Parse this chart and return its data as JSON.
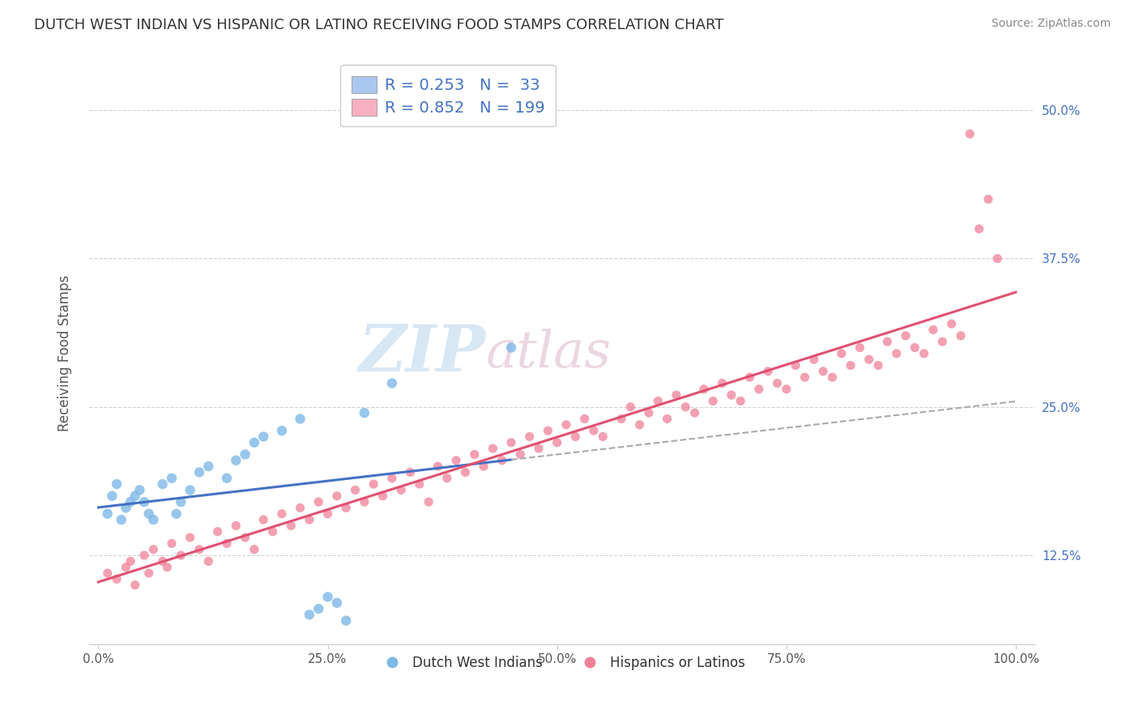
{
  "title": "DUTCH WEST INDIAN VS HISPANIC OR LATINO RECEIVING FOOD STAMPS CORRELATION CHART",
  "source": "Source: ZipAtlas.com",
  "ylabel": "Receiving Food Stamps",
  "watermark_zip": "ZIP",
  "watermark_atlas": "atlas",
  "xlim": [
    -1.0,
    102.0
  ],
  "ylim": [
    5.0,
    54.0
  ],
  "yticks": [
    12.5,
    25.0,
    37.5,
    50.0
  ],
  "ytick_labels": [
    "12.5%",
    "25.0%",
    "37.5%",
    "50.0%"
  ],
  "xticks": [
    0.0,
    25.0,
    50.0,
    75.0,
    100.0
  ],
  "xtick_labels": [
    "0.0%",
    "25.0%",
    "50.0%",
    "75.0%",
    "100.0%"
  ],
  "blue_R": 0.253,
  "blue_N": 33,
  "pink_R": 0.852,
  "pink_N": 199,
  "blue_patch_color": "#A8C8F0",
  "pink_patch_color": "#F8B0C0",
  "blue_line_color": "#4472C4",
  "pink_line_color": "#E05070",
  "blue_scatter_color": "#7EB8E8",
  "pink_scatter_color": "#F08098",
  "legend_label_blue": "Dutch West Indians",
  "legend_label_pink": "Hispanics or Latinos",
  "title_color": "#333333",
  "ytick_color": "#4472C4",
  "xtick_color": "#555555",
  "grid_color": "#CCCCCC",
  "background_color": "#FFFFFF",
  "blue_x": [
    1.0,
    1.5,
    2.0,
    2.5,
    3.0,
    3.5,
    4.0,
    4.5,
    5.0,
    5.5,
    6.0,
    7.0,
    8.0,
    8.5,
    9.0,
    10.0,
    11.0,
    12.0,
    14.0,
    15.0,
    16.0,
    17.0,
    18.0,
    20.0,
    22.0,
    23.0,
    24.0,
    25.0,
    26.0,
    27.0,
    29.0,
    32.0,
    45.0
  ],
  "blue_y": [
    16.0,
    17.5,
    18.5,
    15.5,
    16.5,
    17.0,
    17.5,
    18.0,
    17.0,
    16.0,
    15.5,
    18.5,
    19.0,
    16.0,
    17.0,
    18.0,
    19.5,
    20.0,
    19.0,
    20.5,
    21.0,
    22.0,
    22.5,
    23.0,
    24.0,
    7.5,
    8.0,
    9.0,
    8.5,
    7.0,
    24.5,
    27.0,
    30.0
  ],
  "pink_x": [
    1.0,
    2.0,
    3.0,
    3.5,
    4.0,
    5.0,
    5.5,
    6.0,
    7.0,
    7.5,
    8.0,
    9.0,
    10.0,
    11.0,
    12.0,
    13.0,
    14.0,
    15.0,
    16.0,
    17.0,
    18.0,
    19.0,
    20.0,
    21.0,
    22.0,
    23.0,
    24.0,
    25.0,
    26.0,
    27.0,
    28.0,
    29.0,
    30.0,
    31.0,
    32.0,
    33.0,
    34.0,
    35.0,
    36.0,
    37.0,
    38.0,
    39.0,
    40.0,
    41.0,
    42.0,
    43.0,
    44.0,
    45.0,
    46.0,
    47.0,
    48.0,
    49.0,
    50.0,
    51.0,
    52.0,
    53.0,
    54.0,
    55.0,
    57.0,
    58.0,
    59.0,
    60.0,
    61.0,
    62.0,
    63.0,
    64.0,
    65.0,
    66.0,
    67.0,
    68.0,
    69.0,
    70.0,
    71.0,
    72.0,
    73.0,
    74.0,
    75.0,
    76.0,
    77.0,
    78.0,
    79.0,
    80.0,
    81.0,
    82.0,
    83.0,
    84.0,
    85.0,
    86.0,
    87.0,
    88.0,
    89.0,
    90.0,
    91.0,
    92.0,
    93.0,
    94.0,
    95.0,
    96.0,
    97.0,
    98.0
  ],
  "pink_y": [
    11.0,
    10.5,
    11.5,
    12.0,
    10.0,
    12.5,
    11.0,
    13.0,
    12.0,
    11.5,
    13.5,
    12.5,
    14.0,
    13.0,
    12.0,
    14.5,
    13.5,
    15.0,
    14.0,
    13.0,
    15.5,
    14.5,
    16.0,
    15.0,
    16.5,
    15.5,
    17.0,
    16.0,
    17.5,
    16.5,
    18.0,
    17.0,
    18.5,
    17.5,
    19.0,
    18.0,
    19.5,
    18.5,
    17.0,
    20.0,
    19.0,
    20.5,
    19.5,
    21.0,
    20.0,
    21.5,
    20.5,
    22.0,
    21.0,
    22.5,
    21.5,
    23.0,
    22.0,
    23.5,
    22.5,
    24.0,
    23.0,
    22.5,
    24.0,
    25.0,
    23.5,
    24.5,
    25.5,
    24.0,
    26.0,
    25.0,
    24.5,
    26.5,
    25.5,
    27.0,
    26.0,
    25.5,
    27.5,
    26.5,
    28.0,
    27.0,
    26.5,
    28.5,
    27.5,
    29.0,
    28.0,
    27.5,
    29.5,
    28.5,
    30.0,
    29.0,
    28.5,
    30.5,
    29.5,
    31.0,
    30.0,
    29.5,
    31.5,
    30.5,
    32.0,
    31.0,
    48.0,
    40.0,
    42.5,
    37.5
  ]
}
